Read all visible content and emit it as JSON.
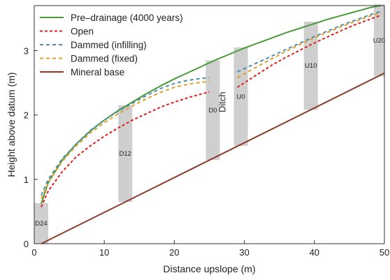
{
  "chart_data": {
    "type": "line",
    "xlabel": "Distance upslope (m)",
    "ylabel": "Height above datum (m)",
    "xlim": [
      0,
      50
    ],
    "ylim": [
      0,
      3.7
    ],
    "xticks": [
      0,
      10,
      20,
      30,
      40,
      50
    ],
    "yticks": [
      0,
      1,
      2,
      3
    ],
    "grid": false,
    "legend_position": "top-left",
    "series": [
      {
        "name": "Pre–drainage (4000 years)",
        "color": "#4a9a3a",
        "dash": "solid",
        "points": [
          [
            1,
            0.62
          ],
          [
            2,
            0.95
          ],
          [
            4,
            1.3
          ],
          [
            6,
            1.55
          ],
          [
            8,
            1.75
          ],
          [
            10,
            1.92
          ],
          [
            12,
            2.07
          ],
          [
            14,
            2.2
          ],
          [
            16,
            2.33
          ],
          [
            18,
            2.45
          ],
          [
            20,
            2.56
          ],
          [
            22,
            2.66
          ],
          [
            24,
            2.76
          ],
          [
            26,
            2.86
          ],
          [
            28,
            2.95
          ],
          [
            30,
            3.04
          ],
          [
            32,
            3.12
          ],
          [
            34,
            3.2
          ],
          [
            36,
            3.28
          ],
          [
            38,
            3.35
          ],
          [
            40,
            3.42
          ],
          [
            42,
            3.49
          ],
          [
            44,
            3.55
          ],
          [
            46,
            3.61
          ],
          [
            48,
            3.67
          ],
          [
            49.5,
            3.7
          ]
        ]
      },
      {
        "name": "Open",
        "color": "#e02020",
        "dash": "4,3",
        "points": [
          [
            1,
            0.57
          ],
          [
            2,
            0.82
          ],
          [
            4,
            1.12
          ],
          [
            6,
            1.35
          ],
          [
            8,
            1.52
          ],
          [
            10,
            1.67
          ],
          [
            12,
            1.8
          ],
          [
            14,
            1.92
          ],
          [
            16,
            2.02
          ],
          [
            18,
            2.12
          ],
          [
            20,
            2.2
          ],
          [
            22,
            2.27
          ],
          [
            24,
            2.33
          ],
          [
            25,
            2.36
          ],
          null,
          [
            29,
            2.43
          ],
          [
            30,
            2.5
          ],
          [
            32,
            2.64
          ],
          [
            34,
            2.78
          ],
          [
            36,
            2.9
          ],
          [
            38,
            3.01
          ],
          [
            40,
            3.12
          ],
          [
            42,
            3.22
          ],
          [
            44,
            3.32
          ],
          [
            46,
            3.41
          ],
          [
            48,
            3.49
          ],
          [
            49.5,
            3.55
          ]
        ]
      },
      {
        "name": "Dammed (infilling)",
        "color": "#4e8fa6",
        "dash": "5,4",
        "points": [
          [
            1,
            0.75
          ],
          [
            2,
            1.0
          ],
          [
            4,
            1.32
          ],
          [
            6,
            1.55
          ],
          [
            8,
            1.76
          ],
          [
            10,
            1.92
          ],
          [
            12,
            2.06
          ],
          [
            14,
            2.18
          ],
          [
            16,
            2.3
          ],
          [
            18,
            2.41
          ],
          [
            20,
            2.49
          ],
          [
            22,
            2.54
          ],
          [
            24,
            2.57
          ],
          [
            25,
            2.58
          ],
          null,
          [
            29,
            2.67
          ],
          [
            30,
            2.72
          ],
          [
            32,
            2.82
          ],
          [
            34,
            2.92
          ],
          [
            36,
            3.02
          ],
          [
            38,
            3.12
          ],
          [
            40,
            3.22
          ],
          [
            42,
            3.31
          ],
          [
            44,
            3.4
          ],
          [
            46,
            3.48
          ],
          [
            48,
            3.56
          ],
          [
            49.5,
            3.61
          ]
        ]
      },
      {
        "name": "Dammed (fixed)",
        "color": "#e0a030",
        "dash": "5,4",
        "points": [
          [
            1,
            0.7
          ],
          [
            2,
            0.95
          ],
          [
            4,
            1.28
          ],
          [
            6,
            1.52
          ],
          [
            8,
            1.72
          ],
          [
            10,
            1.88
          ],
          [
            12,
            2.02
          ],
          [
            14,
            2.14
          ],
          [
            16,
            2.25
          ],
          [
            18,
            2.35
          ],
          [
            20,
            2.43
          ],
          [
            22,
            2.48
          ],
          [
            24,
            2.51
          ],
          [
            25,
            2.52
          ],
          null,
          [
            29,
            2.58
          ],
          [
            30,
            2.64
          ],
          [
            32,
            2.76
          ],
          [
            34,
            2.88
          ],
          [
            36,
            2.99
          ],
          [
            38,
            3.1
          ],
          [
            40,
            3.2
          ],
          [
            42,
            3.29
          ],
          [
            44,
            3.38
          ],
          [
            46,
            3.46
          ],
          [
            48,
            3.54
          ],
          [
            49.5,
            3.59
          ]
        ]
      },
      {
        "name": "Mineral base",
        "color": "#8b3a2a",
        "dash": "solid",
        "points": [
          [
            1,
            0.0
          ],
          [
            50,
            2.65
          ]
        ]
      }
    ],
    "regions": [
      {
        "label": "D24",
        "x0": 0,
        "x1": 2,
        "y0": 0.0,
        "y1": 0.63
      },
      {
        "label": "D12",
        "x0": 12,
        "x1": 14,
        "y0": 0.65,
        "y1": 2.15
      },
      {
        "label": "D0",
        "x0": 24.5,
        "x1": 26.5,
        "y0": 1.3,
        "y1": 2.85
      },
      {
        "label": "U0",
        "x0": 28.5,
        "x1": 30.5,
        "y0": 1.52,
        "y1": 3.05
      },
      {
        "label": "U10",
        "x0": 38.5,
        "x1": 40.5,
        "y0": 2.08,
        "y1": 3.45
      },
      {
        "label": "U20",
        "x0": 48.5,
        "x1": 50,
        "y0": 2.6,
        "y1": 3.72
      }
    ],
    "annotations": [
      {
        "text": "Ditch",
        "x": 27.5,
        "y": 2.2
      }
    ]
  }
}
